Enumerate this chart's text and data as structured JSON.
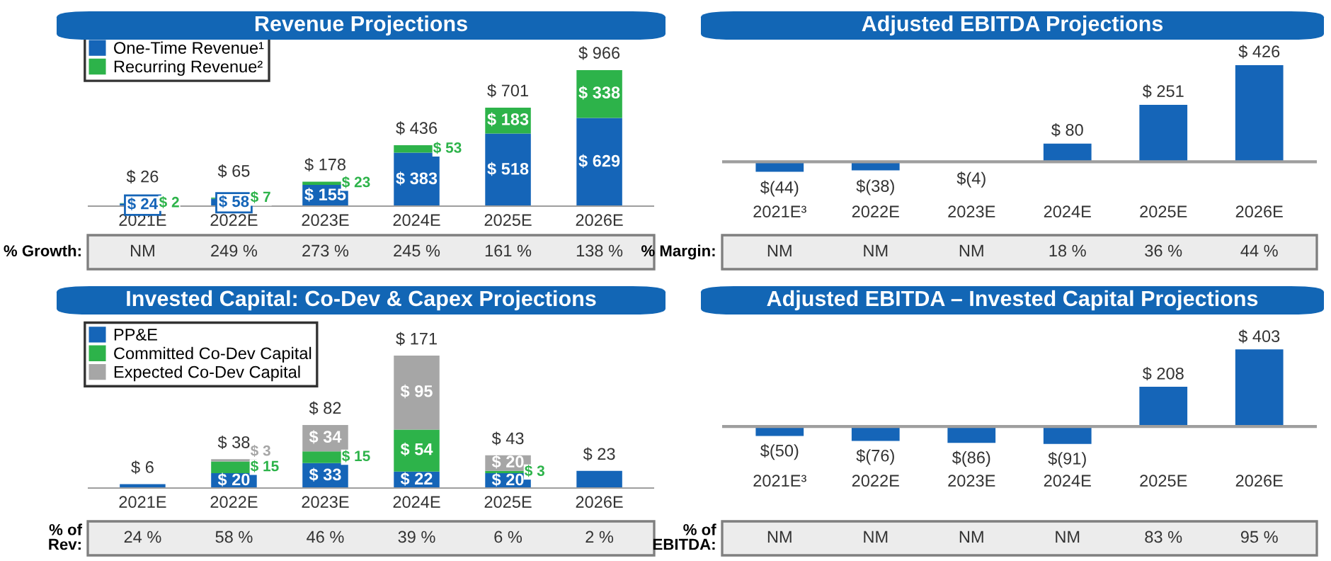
{
  "chart_data": [
    {
      "type": "bar",
      "title": "Revenue Projections",
      "stacked": true,
      "legend": "top left",
      "categories": [
        "2021E",
        "2022E",
        "2023E",
        "2024E",
        "2025E",
        "2026E"
      ],
      "series": [
        {
          "name": "One-Time Revenue¹",
          "color": "#1565b8",
          "values": [
            24,
            58,
            155,
            383,
            518,
            629
          ],
          "value_labels": [
            "$ 24",
            "$ 58",
            "$ 155",
            "$ 383",
            "$ 518",
            "$ 629"
          ]
        },
        {
          "name": "Recurring Revenue²",
          "color": "#2db34a",
          "values": [
            2,
            7,
            23,
            53,
            183,
            338
          ],
          "value_labels": [
            "$ 2",
            "$ 7",
            "$ 23",
            "$ 53",
            "$ 183",
            "$ 338"
          ]
        }
      ],
      "totals": [
        "$ 26",
        "$ 65",
        "$ 178",
        "$ 436",
        "$ 701",
        "$ 966"
      ],
      "annotations": [
        "% Growth:",
        "NM",
        "249 %",
        "273 %",
        "245 %",
        "161 %",
        "138 %"
      ]
    },
    {
      "type": "bar",
      "title": "Adjusted EBITDA Projections",
      "categories": [
        "2021E³",
        "2022E",
        "2023E",
        "2024E",
        "2025E",
        "2026E"
      ],
      "series": [
        {
          "color": "#1565b8",
          "values": [
            -44,
            -38,
            -4,
            80,
            251,
            426
          ],
          "value_labels": [
            "$(44)",
            "$(38)",
            "$(4)",
            "$ 80",
            "$ 251",
            "$ 426"
          ]
        }
      ],
      "annotations": [
        "% Margin:",
        "NM",
        "NM",
        "NM",
        "18 %",
        "36 %",
        "44 %"
      ]
    },
    {
      "type": "bar",
      "title": "Invested Capital: Co-Dev & Capex Projections",
      "stacked": true,
      "legend": "top left",
      "categories": [
        "2021E",
        "2022E",
        "2023E",
        "2024E",
        "2025E",
        "2026E"
      ],
      "series": [
        {
          "name": "PP&E",
          "color": "#1565b8",
          "values": [
            6,
            20,
            33,
            22,
            20,
            23
          ],
          "value_labels": [
            null,
            "$ 20",
            "$ 33",
            "$ 22",
            "$ 20",
            null
          ]
        },
        {
          "name": "Committed Co-Dev Capital",
          "color": "#2db34a",
          "values": [
            null,
            15,
            15,
            54,
            3,
            null
          ],
          "value_labels": [
            null,
            "$ 15",
            "$ 15",
            "$ 54",
            "$ 3",
            null
          ]
        },
        {
          "name": "Expected Co-Dev Capital",
          "color": "#a6a6a6",
          "values": [
            null,
            3,
            34,
            95,
            20,
            null
          ],
          "value_labels": [
            null,
            "$ 3",
            "$ 34",
            "$ 95",
            "$ 20",
            null
          ]
        }
      ],
      "totals": [
        "$ 6",
        "$ 38",
        "$ 82",
        "$ 171",
        "$ 43",
        "$ 23"
      ],
      "annotations": [
        "% of\nRev:",
        "24 %",
        "58 %",
        "46 %",
        "39 %",
        "6 %",
        "2 %"
      ]
    },
    {
      "type": "bar",
      "title": "Adjusted EBITDA – Invested Capital Projections",
      "categories": [
        "2021E³",
        "2022E",
        "2023E",
        "2024E",
        "2025E",
        "2026E"
      ],
      "series": [
        {
          "color": "#1565b8",
          "values": [
            -50,
            -76,
            -86,
            -91,
            208,
            403
          ],
          "value_labels": [
            "$(50)",
            "$(76)",
            "$(86)",
            "$(91)",
            "$ 208",
            "$ 403"
          ]
        }
      ],
      "annotations": [
        "% of\nEBITDA:",
        "NM",
        "NM",
        "NM",
        "NM",
        "83 %",
        "95 %"
      ]
    }
  ]
}
